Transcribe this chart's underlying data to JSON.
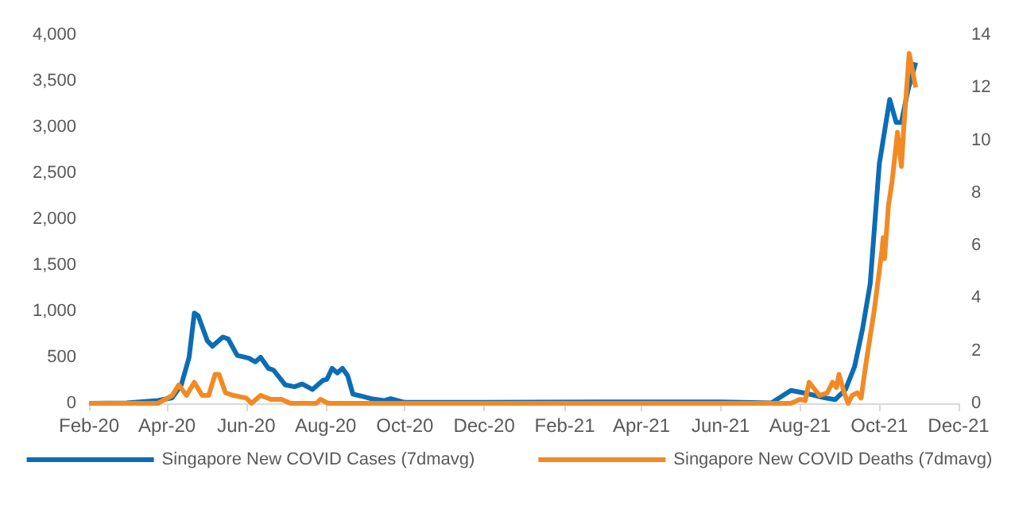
{
  "chart_data": {
    "type": "line",
    "legend": "bottom",
    "grid": false,
    "marker": "none",
    "line_style": "solid",
    "xlim": [
      "2020-02-01",
      "2021-12-01"
    ],
    "xticks": [
      {
        "value": "2020-02-01",
        "label": "Feb-20"
      },
      {
        "value": "2020-04-01",
        "label": "Apr-20"
      },
      {
        "value": "2020-06-01",
        "label": "Jun-20"
      },
      {
        "value": "2020-08-01",
        "label": "Aug-20"
      },
      {
        "value": "2020-10-01",
        "label": "Oct-20"
      },
      {
        "value": "2020-12-01",
        "label": "Dec-20"
      },
      {
        "value": "2021-02-01",
        "label": "Feb-21"
      },
      {
        "value": "2021-04-01",
        "label": "Apr-21"
      },
      {
        "value": "2021-06-01",
        "label": "Jun-21"
      },
      {
        "value": "2021-08-01",
        "label": "Aug-21"
      },
      {
        "value": "2021-10-01",
        "label": "Oct-21"
      },
      {
        "value": "2021-12-01",
        "label": "Dec-21"
      }
    ],
    "ylim": [
      0,
      4000
    ],
    "yticks": [
      {
        "value": 0,
        "label": "0"
      },
      {
        "value": 500,
        "label": "500"
      },
      {
        "value": 1000,
        "label": "1,000"
      },
      {
        "value": 1500,
        "label": "1,500"
      },
      {
        "value": 2000,
        "label": "2,000"
      },
      {
        "value": 2500,
        "label": "2,500"
      },
      {
        "value": 3000,
        "label": "3,000"
      },
      {
        "value": 3500,
        "label": "3,500"
      },
      {
        "value": 4000,
        "label": "4,000"
      }
    ],
    "y2lim": [
      0,
      14
    ],
    "y2ticks": [
      0,
      2,
      4,
      6,
      8,
      10,
      12,
      14
    ],
    "series": [
      {
        "name": "Singapore New COVID Cases (7dmavg)",
        "color": "#0b6db5",
        "x": [
          "2020-02-01",
          "2020-03-01",
          "2020-03-25",
          "2020-04-05",
          "2020-04-12",
          "2020-04-18",
          "2020-04-22",
          "2020-04-25",
          "2020-05-02",
          "2020-05-06",
          "2020-05-14",
          "2020-05-18",
          "2020-05-25",
          "2020-06-03",
          "2020-06-08",
          "2020-06-12",
          "2020-06-18",
          "2020-06-22",
          "2020-07-01",
          "2020-07-08",
          "2020-07-14",
          "2020-07-22",
          "2020-07-30",
          "2020-08-02",
          "2020-08-06",
          "2020-08-10",
          "2020-08-14",
          "2020-08-18",
          "2020-08-22",
          "2020-08-28",
          "2020-09-05",
          "2020-09-15",
          "2020-09-20",
          "2020-10-01",
          "2020-12-01",
          "2021-03-01",
          "2021-06-01",
          "2021-07-10",
          "2021-07-25",
          "2021-08-05",
          "2021-08-20",
          "2021-08-28",
          "2021-09-05",
          "2021-09-12",
          "2021-09-18",
          "2021-09-24",
          "2021-10-01",
          "2021-10-09",
          "2021-10-14",
          "2021-10-18",
          "2021-10-23",
          "2021-10-29"
        ],
        "values": [
          0,
          5,
          30,
          60,
          200,
          500,
          980,
          950,
          680,
          620,
          720,
          700,
          520,
          490,
          450,
          500,
          380,
          360,
          200,
          180,
          210,
          150,
          250,
          260,
          380,
          330,
          380,
          300,
          100,
          80,
          50,
          30,
          50,
          10,
          10,
          15,
          15,
          5,
          140,
          110,
          60,
          40,
          150,
          400,
          800,
          1300,
          2600,
          3300,
          3050,
          3050,
          3400,
          3700
        ]
      },
      {
        "name": "Singapore New COVID Deaths (7dmavg)",
        "color": "#f28a24",
        "axis": "y2",
        "x": [
          "2020-02-01",
          "2020-03-25",
          "2020-04-05",
          "2020-04-10",
          "2020-04-16",
          "2020-04-22",
          "2020-04-28",
          "2020-05-03",
          "2020-05-08",
          "2020-05-11",
          "2020-05-16",
          "2020-05-22",
          "2020-06-01",
          "2020-06-05",
          "2020-06-12",
          "2020-06-20",
          "2020-06-28",
          "2020-07-05",
          "2020-07-25",
          "2020-07-28",
          "2020-08-03",
          "2021-07-25",
          "2021-08-01",
          "2021-08-05",
          "2021-08-08",
          "2021-08-16",
          "2021-08-22",
          "2021-08-26",
          "2021-08-29",
          "2021-08-31",
          "2021-09-04",
          "2021-09-07",
          "2021-09-10",
          "2021-09-14",
          "2021-09-17",
          "2021-09-21",
          "2021-09-27",
          "2021-10-03",
          "2021-10-04",
          "2021-10-05",
          "2021-10-08",
          "2021-10-11",
          "2021-10-15",
          "2021-10-18",
          "2021-10-20",
          "2021-10-24",
          "2021-10-29"
        ],
        "values": [
          0,
          0,
          0.3,
          0.7,
          0.3,
          0.8,
          0.3,
          0.3,
          1.1,
          1.1,
          0.4,
          0.3,
          0.2,
          0,
          0.3,
          0.15,
          0.15,
          0,
          0,
          0.15,
          0,
          0,
          0.15,
          0.1,
          0.8,
          0.3,
          0.4,
          0.8,
          0.6,
          1.1,
          0.4,
          0,
          0.3,
          0.4,
          0.2,
          1.6,
          3.5,
          5.8,
          6.3,
          5.5,
          7.5,
          8.5,
          10.3,
          9,
          10.6,
          13.3,
          12
        ]
      }
    ]
  }
}
